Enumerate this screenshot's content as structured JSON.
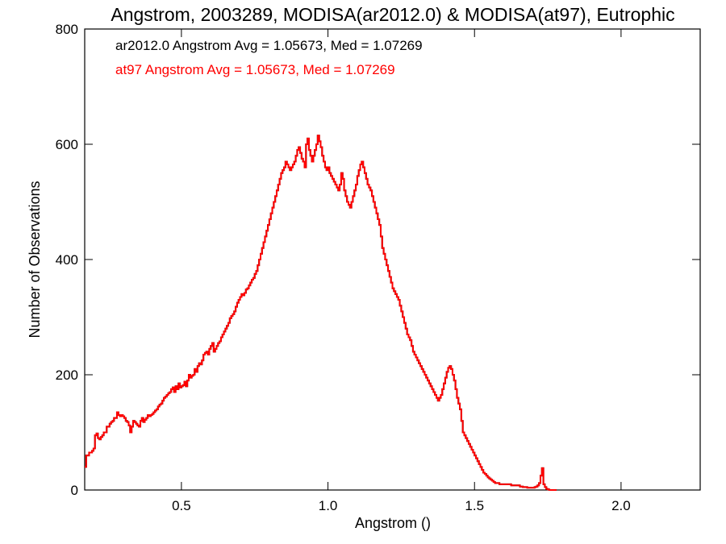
{
  "chart_data": {
    "type": "histogram",
    "title": "Angstrom, 2003289, MODISA(ar2012.0) & MODISA(at97), Eutrophic",
    "xlabel": "Angstrom ()",
    "ylabel": "Number of Observations",
    "xlim": [
      0.17,
      2.27
    ],
    "ylim": [
      0,
      800
    ],
    "xticks": [
      0.5,
      1.0,
      1.5,
      2.0
    ],
    "xtick_labels": [
      "0.5",
      "1.0",
      "1.5",
      "2.0"
    ],
    "yticks": [
      0,
      200,
      400,
      600,
      800
    ],
    "ytick_labels": [
      "0",
      "200",
      "400",
      "600",
      "800"
    ],
    "grid": false,
    "series": [
      {
        "name": "ar2012.0",
        "color": "#000000",
        "annotation": "ar2012.0 Angstrom Avg = 1.05673, Med = 1.07269",
        "x_start": 0.17,
        "bin_width": 0.005,
        "values": [
          40,
          60,
          60,
          65,
          65,
          68,
          72,
          95,
          98,
          90,
          88,
          92,
          95,
          100,
          100,
          110,
          110,
          115,
          118,
          120,
          125,
          125,
          135,
          130,
          128,
          130,
          128,
          125,
          120,
          118,
          112,
          100,
          110,
          120,
          118,
          115,
          112,
          110,
          120,
          125,
          118,
          122,
          125,
          130,
          128,
          130,
          132,
          135,
          138,
          140,
          145,
          148,
          150,
          155,
          160,
          162,
          165,
          168,
          170,
          175,
          178,
          170,
          180,
          175,
          185,
          178,
          180,
          182,
          188,
          180,
          190,
          200,
          195,
          198,
          200,
          210,
          205,
          215,
          220,
          218,
          225,
          235,
          238,
          240,
          235,
          245,
          250,
          255,
          240,
          245,
          250,
          255,
          258,
          265,
          270,
          275,
          280,
          285,
          290,
          298,
          302,
          305,
          310,
          318,
          325,
          330,
          335,
          340,
          338,
          342,
          348,
          350,
          355,
          360,
          365,
          368,
          375,
          380,
          390,
          400,
          410,
          420,
          430,
          440,
          450,
          460,
          470,
          480,
          490,
          500,
          510,
          520,
          530,
          540,
          550,
          555,
          560,
          570,
          565,
          560,
          555,
          560,
          565,
          570,
          580,
          590,
          595,
          585,
          575,
          570,
          560,
          600,
          610,
          590,
          580,
          570,
          580,
          590,
          600,
          615,
          605,
          595,
          580,
          570,
          560,
          555,
          560,
          550,
          545,
          540,
          535,
          530,
          525,
          520,
          530,
          550,
          540,
          520,
          510,
          500,
          495,
          490,
          500,
          510,
          520,
          530,
          545,
          555,
          565,
          570,
          560,
          550,
          540,
          530,
          525,
          520,
          510,
          500,
          490,
          480,
          470,
          460,
          440,
          420,
          410,
          400,
          390,
          380,
          370,
          360,
          350,
          345,
          340,
          335,
          330,
          320,
          310,
          300,
          290,
          280,
          270,
          265,
          260,
          250,
          240,
          235,
          230,
          225,
          220,
          215,
          210,
          205,
          200,
          195,
          190,
          185,
          180,
          175,
          170,
          165,
          160,
          155,
          160,
          165,
          175,
          185,
          195,
          205,
          212,
          215,
          210,
          200,
          190,
          175,
          160,
          150,
          140,
          120,
          100,
          95,
          90,
          85,
          80,
          75,
          70,
          65,
          60,
          55,
          50,
          45,
          40,
          35,
          30,
          28,
          25,
          22,
          20,
          18,
          16,
          14,
          12,
          12,
          12,
          10,
          10,
          10,
          10,
          10,
          10,
          10,
          10,
          8,
          8,
          8,
          8,
          8,
          8,
          6,
          6,
          5,
          5,
          5,
          4,
          4,
          4,
          4,
          4,
          5,
          6,
          8,
          12,
          25,
          38,
          10,
          5,
          2,
          1,
          0,
          0,
          0,
          0,
          0
        ]
      },
      {
        "name": "at97",
        "color": "#ff0000",
        "annotation": "at97 Angstrom Avg = 1.05673, Med = 1.07269",
        "x_start": 0.17,
        "bin_width": 0.005,
        "same_as": "ar2012.0"
      }
    ]
  }
}
